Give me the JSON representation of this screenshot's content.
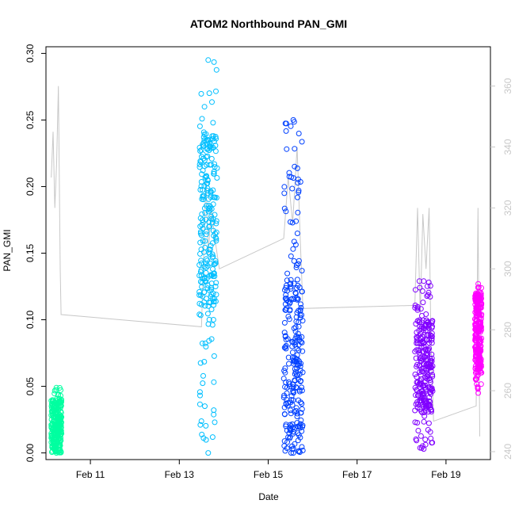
{
  "chart_data": {
    "type": "scatter",
    "title": "ATOM2 Northbound PAN_GMI",
    "xlabel": "Date",
    "ylabel": "PAN_GMI",
    "x_axis": {
      "unit": "days since Feb 10",
      "range": [
        0.0,
        10.0
      ],
      "ticks": [
        {
          "value": 1,
          "label": "Feb 11"
        },
        {
          "value": 3,
          "label": "Feb 13"
        },
        {
          "value": 5,
          "label": "Feb 15"
        },
        {
          "value": 7,
          "label": "Feb 17"
        },
        {
          "value": 9,
          "label": "Feb 19"
        }
      ]
    },
    "y_axis": {
      "range": [
        -0.005,
        0.305
      ],
      "ticks": [
        {
          "value": 0.0,
          "label": "0.00"
        },
        {
          "value": 0.05,
          "label": "0.05"
        },
        {
          "value": 0.1,
          "label": "0.10"
        },
        {
          "value": 0.15,
          "label": "0.15"
        },
        {
          "value": 0.2,
          "label": "0.20"
        },
        {
          "value": 0.25,
          "label": "0.25"
        },
        {
          "value": 0.3,
          "label": "0.30"
        }
      ]
    },
    "y2_axis": {
      "range": [
        237.4,
        372.9
      ],
      "color": "#c8c8c8",
      "ticks": [
        {
          "value": 240,
          "label": "240"
        },
        {
          "value": 260,
          "label": "260"
        },
        {
          "value": 280,
          "label": "280"
        },
        {
          "value": 300,
          "label": "300"
        },
        {
          "value": 320,
          "label": "320"
        },
        {
          "value": 340,
          "label": "340"
        },
        {
          "value": 360,
          "label": "360"
        }
      ]
    },
    "grid": false,
    "series": [
      {
        "color": "#00ffa0",
        "x_range": [
          0.12,
          0.35
        ],
        "y_min": 0.0,
        "y_max": 0.049,
        "y_dense": [
          0.0,
          0.04
        ]
      },
      {
        "color": "#00bfff",
        "x_range": [
          3.45,
          3.85
        ],
        "y_min": 0.0,
        "y_max": 0.295,
        "y_dense": [
          0.11,
          0.24
        ]
      },
      {
        "color": "#0040ff",
        "x_range": [
          5.35,
          5.78
        ],
        "y_min": 0.0,
        "y_max": 0.25,
        "y_dense": [
          0.0,
          0.13
        ]
      },
      {
        "color": "#8000ff",
        "x_range": [
          8.3,
          8.7
        ],
        "y_min": 0.003,
        "y_max": 0.129,
        "y_dense": [
          0.03,
          0.1
        ]
      },
      {
        "color": "#ff00ff",
        "x_range": [
          9.65,
          9.8
        ],
        "y_min": 0.045,
        "y_max": 0.127,
        "y_dense": [
          0.06,
          0.12
        ]
      }
    ],
    "secondary_series": {
      "color": "#c8c8c8",
      "axis": "right",
      "points": [
        [
          0.12,
          330
        ],
        [
          0.16,
          345
        ],
        [
          0.2,
          320
        ],
        [
          0.24,
          335
        ],
        [
          0.28,
          360
        ],
        [
          0.32,
          300
        ],
        [
          0.34,
          285
        ],
        [
          3.5,
          281
        ],
        [
          3.6,
          330
        ],
        [
          3.65,
          305
        ],
        [
          3.72,
          320
        ],
        [
          3.8,
          310
        ],
        [
          3.9,
          300
        ],
        [
          5.35,
          310
        ],
        [
          5.45,
          330
        ],
        [
          5.55,
          315
        ],
        [
          5.65,
          340
        ],
        [
          5.72,
          310
        ],
        [
          5.78,
          287
        ],
        [
          8.3,
          288
        ],
        [
          8.36,
          320
        ],
        [
          8.42,
          285
        ],
        [
          8.48,
          318
        ],
        [
          8.55,
          300
        ],
        [
          8.62,
          320
        ],
        [
          8.66,
          278
        ],
        [
          8.72,
          250
        ],
        [
          9.68,
          255
        ],
        [
          9.72,
          320
        ],
        [
          9.76,
          245
        ]
      ]
    }
  }
}
